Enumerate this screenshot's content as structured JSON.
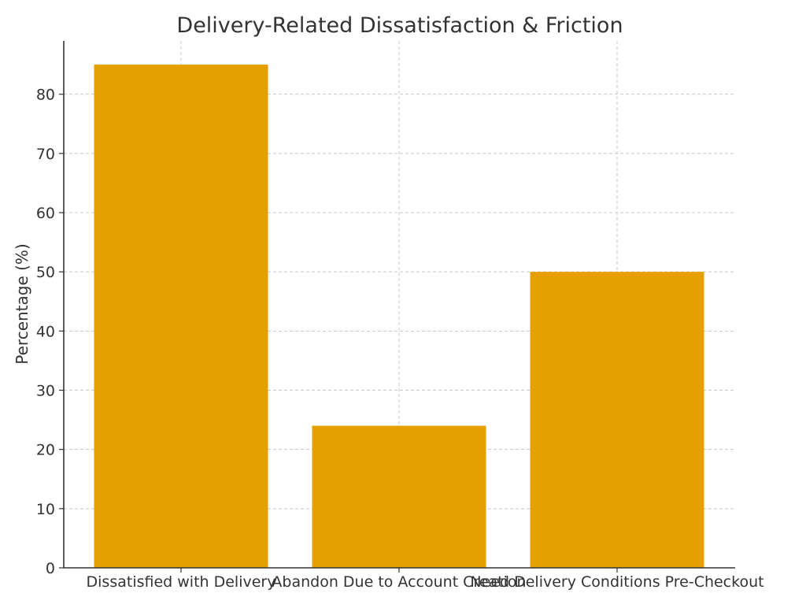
{
  "chart_data": {
    "type": "bar",
    "title": "Delivery-Related Dissatisfaction & Friction",
    "xlabel": "",
    "ylabel": "Percentage (%)",
    "categories": [
      "Dissatisfied with Delivery",
      "Abandon Due to Account Creation",
      "Need Delivery Conditions Pre-Checkout"
    ],
    "values": [
      85,
      24,
      50
    ],
    "ylim": [
      0,
      89
    ],
    "yticks": [
      0,
      10,
      20,
      30,
      40,
      50,
      60,
      70,
      80
    ],
    "grid": true,
    "legend": "none",
    "colors": {
      "bar": "#E69F00",
      "axis": "#333333",
      "grid": "#c8c8c8",
      "text": "#333333"
    }
  }
}
